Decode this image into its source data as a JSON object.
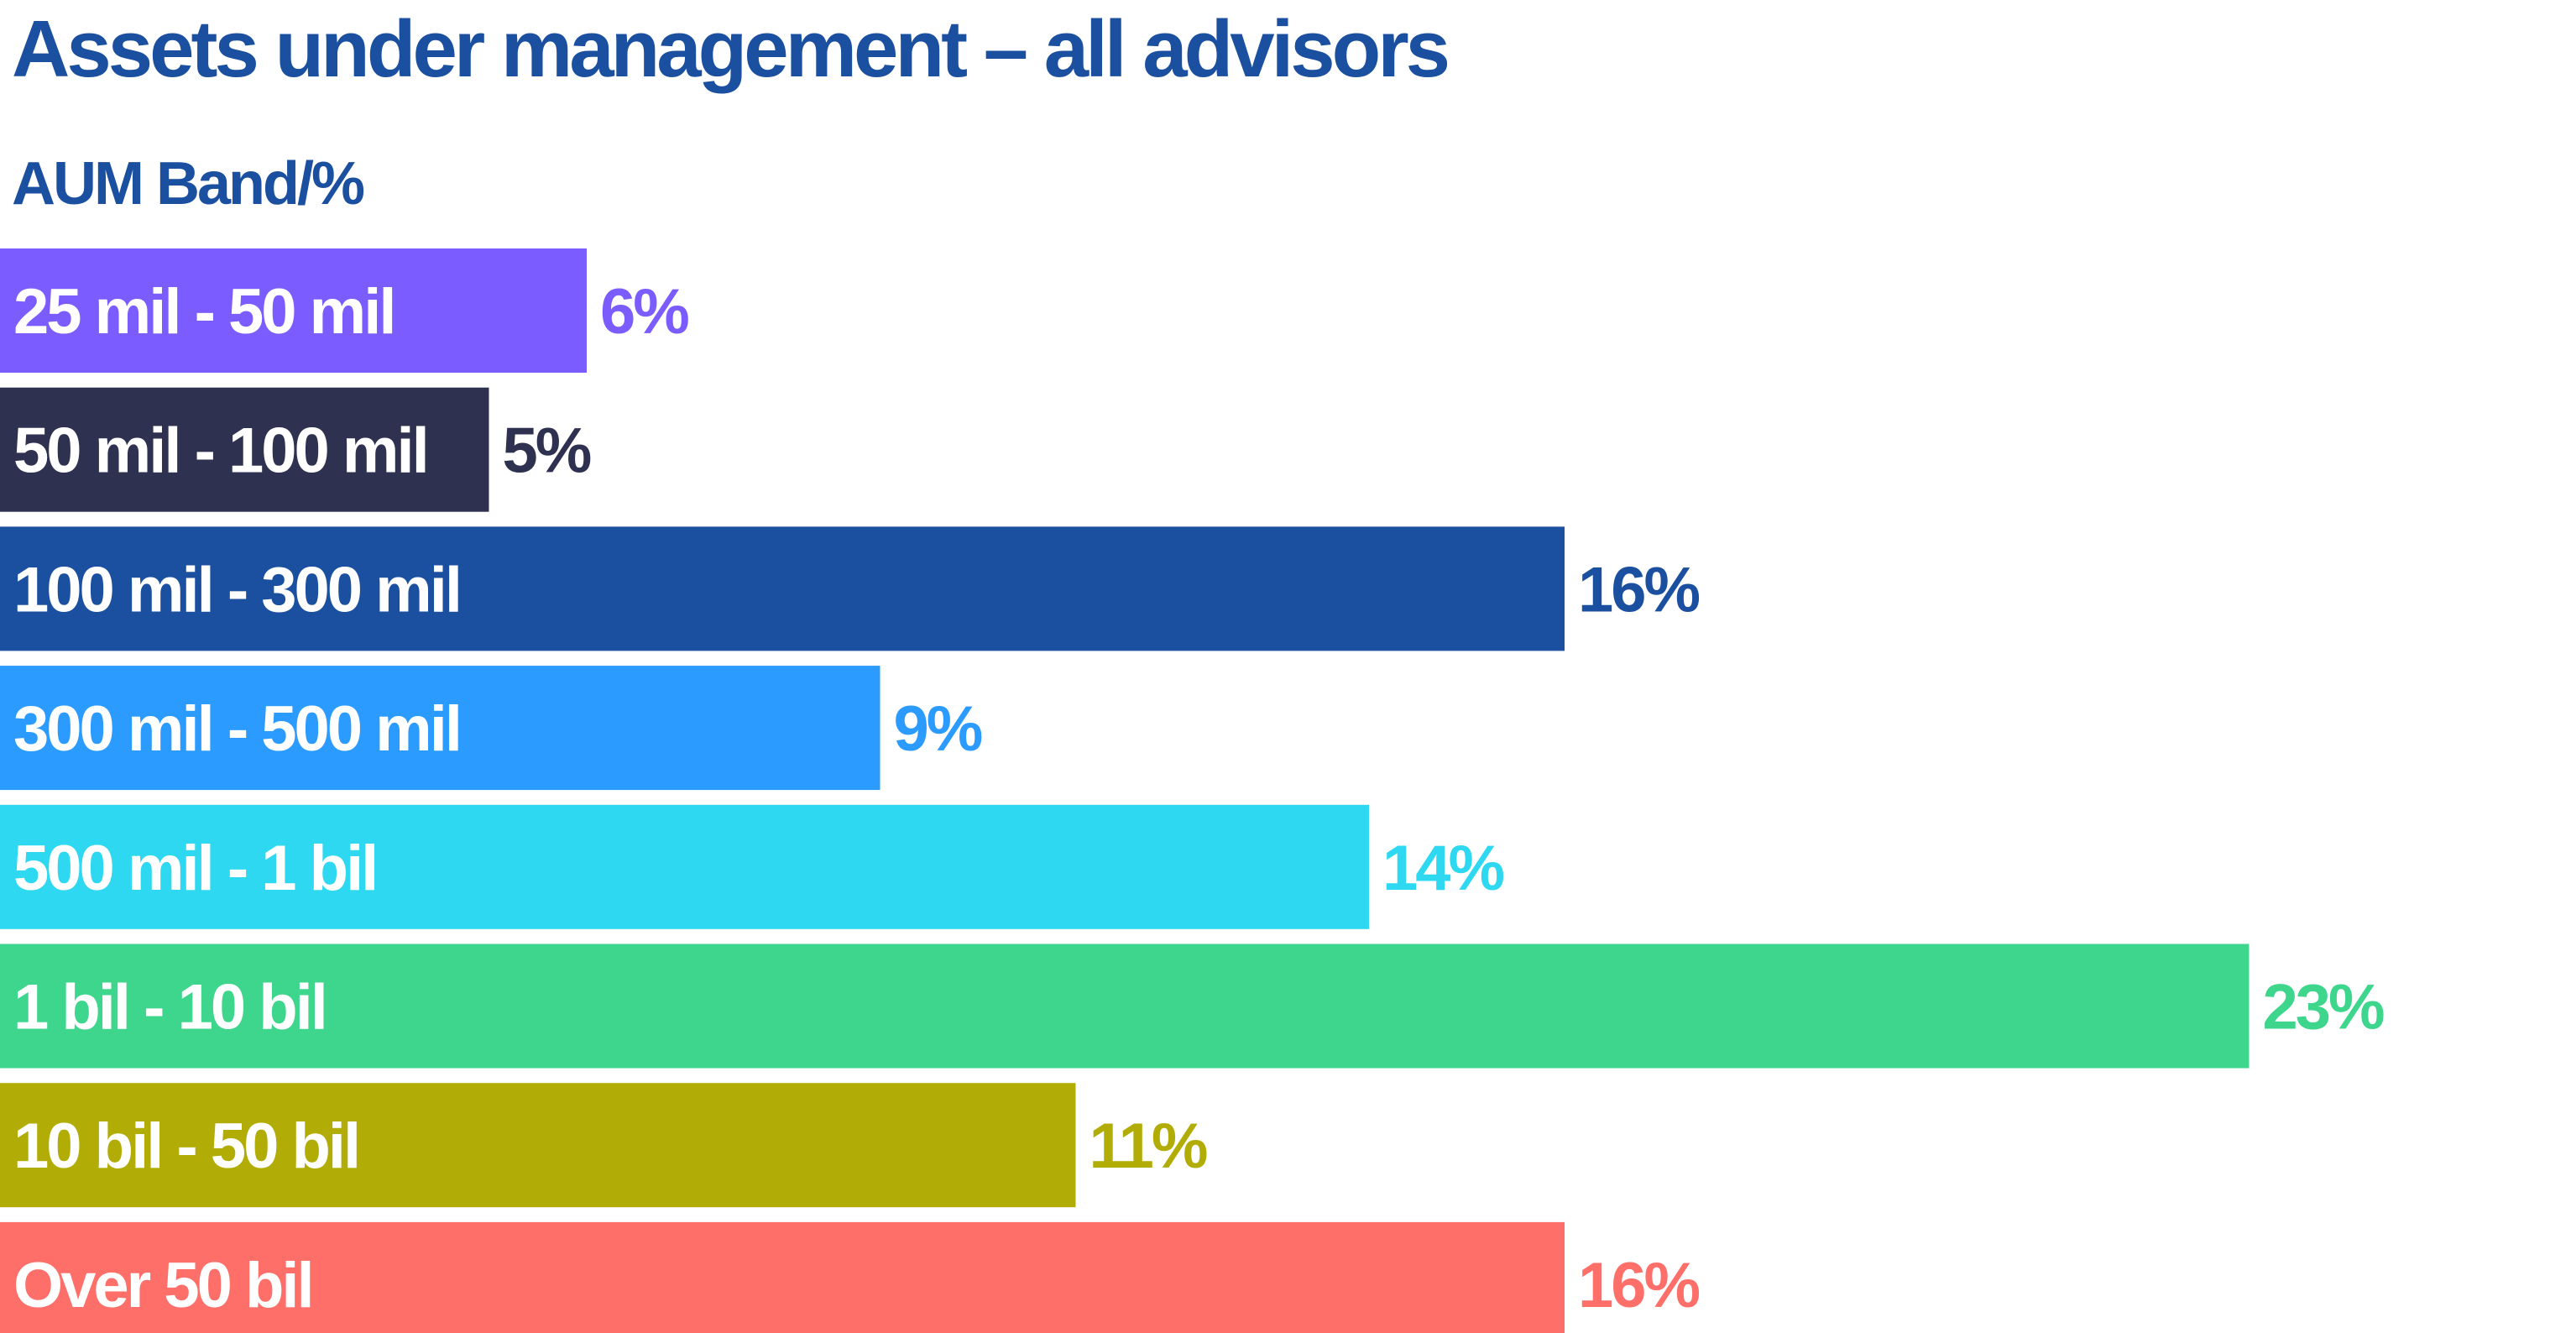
{
  "chart_data": {
    "type": "bar",
    "orientation": "horizontal",
    "title": "Assets under management – all advisors",
    "ylabel": "AUM Band/%",
    "xlabel": "",
    "categories": [
      "25 mil - 50 mil",
      "50 mil - 100 mil",
      "100 mil - 300 mil",
      "300 mil - 500 mil",
      "500 mil - 1 bil",
      "1 bil - 10 bil",
      "10 bil - 50 bil",
      "Over 50 bil"
    ],
    "values": [
      6,
      5,
      16,
      9,
      14,
      23,
      11,
      16
    ],
    "value_labels": [
      "6%",
      "5%",
      "16%",
      "9%",
      "14%",
      "23%",
      "11%",
      "16%"
    ],
    "colors": [
      "#7b5cff",
      "#2e314f",
      "#1b4fa0",
      "#2b9bff",
      "#2ed8f0",
      "#3dd68c",
      "#b2ad06",
      "#ff6f69"
    ],
    "xlim": [
      0,
      26
    ],
    "grid": false,
    "legend": "none"
  }
}
